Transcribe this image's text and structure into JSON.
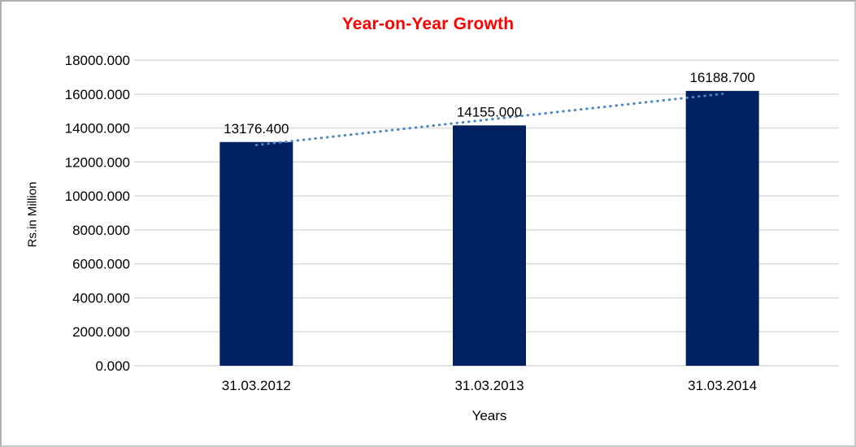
{
  "window": {
    "background": "#ffffff",
    "border_color": "#c9c9c9"
  },
  "chart_data": {
    "type": "bar",
    "title": "Year-on-Year Growth",
    "title_color": "#ff0000",
    "categories": [
      "31.03.2012",
      "31.03.2013",
      "31.03.2014"
    ],
    "values": [
      13176.4,
      14155.0,
      16188.7
    ],
    "data_labels": [
      "13176.400",
      "14155.000",
      "16188.700"
    ],
    "xlabel": "Years",
    "ylabel": "Rs.in Million",
    "ylim": [
      0,
      18000
    ],
    "ytick_step": 2000,
    "ytick_labels": [
      "0.000",
      "2000.000",
      "4000.000",
      "6000.000",
      "8000.000",
      "10000.000",
      "12000.000",
      "14000.000",
      "16000.000",
      "18000.000"
    ],
    "bar_color": "#002060",
    "gridlines": true,
    "gridline_color": "#d9d9d9",
    "tick_color": "#d9d9d9",
    "trendline": {
      "type": "linear",
      "style": "dotted",
      "color": "#4a86c8"
    },
    "legend": "none"
  }
}
